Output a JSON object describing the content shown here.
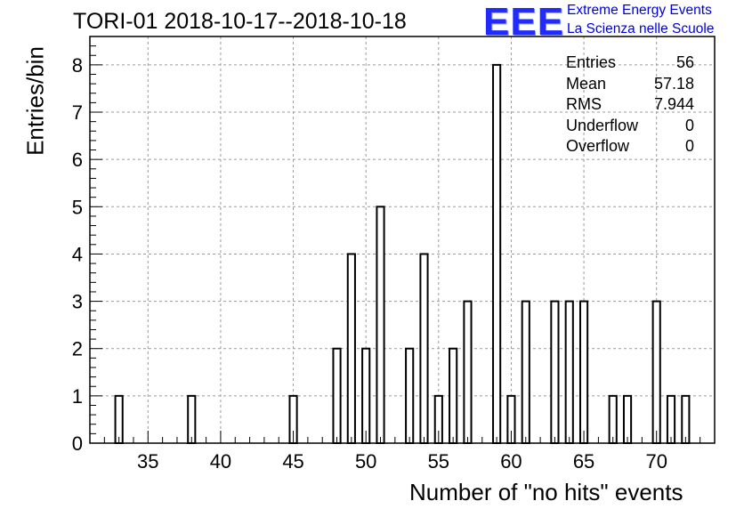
{
  "title": "TORI-01 2018-10-17--2018-10-18",
  "logo": {
    "mark": "EEE",
    "line1": "Extreme Energy Events",
    "line2": "La Scienza nelle Scuole",
    "color": "#1f2bff"
  },
  "stats": [
    {
      "label": "Entries",
      "value": "56"
    },
    {
      "label": "Mean",
      "value": "57.18"
    },
    {
      "label": "RMS",
      "value": "7.944"
    },
    {
      "label": "Underflow",
      "value": "0"
    },
    {
      "label": "Overflow",
      "value": "0"
    }
  ],
  "chart_data": {
    "type": "bar",
    "title": "TORI-01 2018-10-17--2018-10-18",
    "xlabel": "Number of \"no hits\" events",
    "ylabel": "Entries/bin",
    "xlim": [
      31,
      74
    ],
    "ylim": [
      0,
      8.6
    ],
    "bin_width": 0.5,
    "x_ticks": [
      35,
      40,
      45,
      50,
      55,
      60,
      65,
      70
    ],
    "y_ticks": [
      0,
      1,
      2,
      3,
      4,
      5,
      6,
      7,
      8
    ],
    "grid": true,
    "bins": [
      {
        "x": 33,
        "count": 1
      },
      {
        "x": 38,
        "count": 1
      },
      {
        "x": 45,
        "count": 1
      },
      {
        "x": 48,
        "count": 2
      },
      {
        "x": 49,
        "count": 4
      },
      {
        "x": 50,
        "count": 2
      },
      {
        "x": 51,
        "count": 5
      },
      {
        "x": 53,
        "count": 2
      },
      {
        "x": 54,
        "count": 4
      },
      {
        "x": 55,
        "count": 1
      },
      {
        "x": 56,
        "count": 2
      },
      {
        "x": 57,
        "count": 3
      },
      {
        "x": 59,
        "count": 8
      },
      {
        "x": 60,
        "count": 1
      },
      {
        "x": 61,
        "count": 3
      },
      {
        "x": 63,
        "count": 3
      },
      {
        "x": 64,
        "count": 3
      },
      {
        "x": 65,
        "count": 3
      },
      {
        "x": 67,
        "count": 1
      },
      {
        "x": 68,
        "count": 1
      },
      {
        "x": 70,
        "count": 3
      },
      {
        "x": 71,
        "count": 1
      },
      {
        "x": 72,
        "count": 1
      }
    ]
  }
}
